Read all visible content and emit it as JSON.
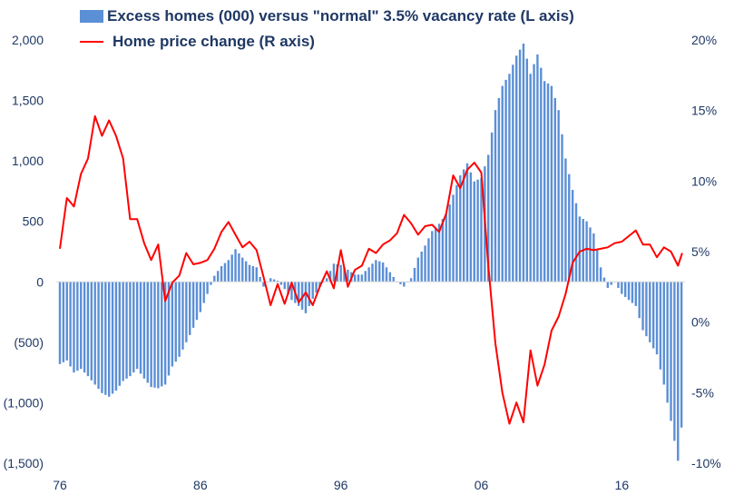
{
  "chart_data": {
    "type": "bar",
    "title": "",
    "legend": [
      {
        "label": "Excess homes (000) versus \"normal\" 3.5% vacancy rate (L axis)",
        "kind": "bar",
        "color": "#5b8fd6"
      },
      {
        "label": "Home price change (R axis)",
        "kind": "line",
        "color": "#ff0000"
      }
    ],
    "left_axis": {
      "ylim": [
        -1500,
        2000
      ],
      "ticks": [
        -1500,
        -1000,
        -500,
        0,
        500,
        1000,
        1500,
        2000
      ],
      "tick_labels": [
        "(1,500)",
        "(1,000)",
        "(500)",
        "0",
        "500",
        "1,000",
        "1,500",
        "2,000"
      ]
    },
    "right_axis": {
      "ylim": [
        -10,
        20
      ],
      "ticks": [
        -10,
        -5,
        0,
        5,
        10,
        15,
        20
      ],
      "tick_labels": [
        "-10%",
        "-5%",
        "0%",
        "5%",
        "10%",
        "15%",
        "20%"
      ]
    },
    "x_axis": {
      "start": 1976.0,
      "end": 2020.5,
      "tick_years": [
        1976,
        1986,
        1996,
        2006,
        2016
      ],
      "tick_labels": [
        "76",
        "86",
        "96",
        "06",
        "16"
      ]
    },
    "series": [
      {
        "name": "Excess homes (000)",
        "axis": "left",
        "type": "bar",
        "points": [
          [
            1976.0,
            -680
          ],
          [
            1976.5,
            -650
          ],
          [
            1977.0,
            -750
          ],
          [
            1977.5,
            -720
          ],
          [
            1978.0,
            -780
          ],
          [
            1978.5,
            -850
          ],
          [
            1979.0,
            -920
          ],
          [
            1979.5,
            -950
          ],
          [
            1980.0,
            -900
          ],
          [
            1980.5,
            -820
          ],
          [
            1981.0,
            -780
          ],
          [
            1981.5,
            -720
          ],
          [
            1982.0,
            -800
          ],
          [
            1982.5,
            -870
          ],
          [
            1983.0,
            -880
          ],
          [
            1983.5,
            -850
          ],
          [
            1984.0,
            -700
          ],
          [
            1984.5,
            -620
          ],
          [
            1985.0,
            -500
          ],
          [
            1985.5,
            -380
          ],
          [
            1986.0,
            -250
          ],
          [
            1986.5,
            -100
          ],
          [
            1987.0,
            50
          ],
          [
            1987.5,
            130
          ],
          [
            1988.0,
            180
          ],
          [
            1988.5,
            270
          ],
          [
            1989.0,
            200
          ],
          [
            1989.5,
            140
          ],
          [
            1990.0,
            120
          ],
          [
            1990.5,
            -40
          ],
          [
            1991.0,
            30
          ],
          [
            1991.5,
            10
          ],
          [
            1992.0,
            -60
          ],
          [
            1992.5,
            -150
          ],
          [
            1993.0,
            -200
          ],
          [
            1993.5,
            -260
          ],
          [
            1994.0,
            -140
          ],
          [
            1994.5,
            -40
          ],
          [
            1995.0,
            30
          ],
          [
            1995.5,
            150
          ],
          [
            1996.0,
            140
          ],
          [
            1996.5,
            100
          ],
          [
            1997.0,
            60
          ],
          [
            1997.5,
            60
          ],
          [
            1998.0,
            120
          ],
          [
            1998.5,
            180
          ],
          [
            1999.0,
            160
          ],
          [
            1999.5,
            80
          ],
          [
            2000.0,
            0
          ],
          [
            2000.5,
            -40
          ],
          [
            2001.0,
            30
          ],
          [
            2001.5,
            200
          ],
          [
            2002.0,
            300
          ],
          [
            2002.5,
            420
          ],
          [
            2003.0,
            480
          ],
          [
            2003.5,
            560
          ],
          [
            2004.0,
            720
          ],
          [
            2004.5,
            880
          ],
          [
            2005.0,
            980
          ],
          [
            2005.5,
            830
          ],
          [
            2006.0,
            860
          ],
          [
            2006.5,
            1050
          ],
          [
            2007.0,
            1420
          ],
          [
            2007.5,
            1620
          ],
          [
            2008.0,
            1720
          ],
          [
            2008.5,
            1870
          ],
          [
            2009.0,
            1970
          ],
          [
            2009.5,
            1720
          ],
          [
            2010.0,
            1880
          ],
          [
            2010.5,
            1660
          ],
          [
            2011.0,
            1620
          ],
          [
            2011.5,
            1420
          ],
          [
            2012.0,
            1020
          ],
          [
            2012.5,
            760
          ],
          [
            2013.0,
            540
          ],
          [
            2013.5,
            500
          ],
          [
            2014.0,
            400
          ],
          [
            2014.5,
            120
          ],
          [
            2015.0,
            -50
          ],
          [
            2015.5,
            0
          ],
          [
            2016.0,
            -100
          ],
          [
            2016.5,
            -150
          ],
          [
            2017.0,
            -200
          ],
          [
            2017.5,
            -400
          ],
          [
            2018.0,
            -500
          ],
          [
            2018.5,
            -600
          ],
          [
            2019.0,
            -850
          ],
          [
            2019.5,
            -1150
          ],
          [
            2020.0,
            -1480
          ],
          [
            2020.3,
            -1150
          ]
        ]
      },
      {
        "name": "Home price change (%)",
        "axis": "right",
        "type": "line",
        "points": [
          [
            1976.0,
            5.2
          ],
          [
            1976.5,
            8.8
          ],
          [
            1977.0,
            8.2
          ],
          [
            1977.5,
            10.5
          ],
          [
            1978.0,
            11.6
          ],
          [
            1978.5,
            14.6
          ],
          [
            1979.0,
            13.2
          ],
          [
            1979.5,
            14.3
          ],
          [
            1980.0,
            13.2
          ],
          [
            1980.5,
            11.6
          ],
          [
            1981.0,
            7.3
          ],
          [
            1981.5,
            7.3
          ],
          [
            1982.0,
            5.6
          ],
          [
            1982.5,
            4.4
          ],
          [
            1983.0,
            5.5
          ],
          [
            1983.5,
            1.5
          ],
          [
            1984.0,
            2.8
          ],
          [
            1984.5,
            3.3
          ],
          [
            1985.0,
            4.9
          ],
          [
            1985.5,
            4.1
          ],
          [
            1986.0,
            4.2
          ],
          [
            1986.5,
            4.4
          ],
          [
            1987.0,
            5.2
          ],
          [
            1987.5,
            6.4
          ],
          [
            1988.0,
            7.1
          ],
          [
            1988.5,
            6.2
          ],
          [
            1989.0,
            5.3
          ],
          [
            1989.5,
            5.7
          ],
          [
            1990.0,
            5.1
          ],
          [
            1990.5,
            3.2
          ],
          [
            1991.0,
            1.2
          ],
          [
            1991.5,
            2.7
          ],
          [
            1992.0,
            1.3
          ],
          [
            1992.5,
            2.8
          ],
          [
            1993.0,
            1.4
          ],
          [
            1993.5,
            2.1
          ],
          [
            1994.0,
            1.2
          ],
          [
            1994.5,
            2.5
          ],
          [
            1995.0,
            3.6
          ],
          [
            1995.5,
            2.4
          ],
          [
            1996.0,
            5.1
          ],
          [
            1996.5,
            2.5
          ],
          [
            1997.0,
            3.7
          ],
          [
            1997.5,
            4.0
          ],
          [
            1998.0,
            5.2
          ],
          [
            1998.5,
            4.9
          ],
          [
            1999.0,
            5.5
          ],
          [
            1999.5,
            5.8
          ],
          [
            2000.0,
            6.3
          ],
          [
            2000.5,
            7.6
          ],
          [
            2001.0,
            7.0
          ],
          [
            2001.5,
            6.2
          ],
          [
            2002.0,
            6.8
          ],
          [
            2002.5,
            6.9
          ],
          [
            2003.0,
            6.4
          ],
          [
            2003.5,
            7.7
          ],
          [
            2004.0,
            10.4
          ],
          [
            2004.5,
            9.5
          ],
          [
            2005.0,
            10.8
          ],
          [
            2005.5,
            11.3
          ],
          [
            2006.0,
            10.6
          ],
          [
            2006.5,
            4.0
          ],
          [
            2007.0,
            -1.5
          ],
          [
            2007.5,
            -5.0
          ],
          [
            2008.0,
            -7.2
          ],
          [
            2008.5,
            -5.7
          ],
          [
            2009.0,
            -7.1
          ],
          [
            2009.5,
            -2.0
          ],
          [
            2010.0,
            -4.5
          ],
          [
            2010.5,
            -3.0
          ],
          [
            2011.0,
            -0.6
          ],
          [
            2011.5,
            0.4
          ],
          [
            2012.0,
            2.0
          ],
          [
            2012.5,
            4.2
          ],
          [
            2013.0,
            5.0
          ],
          [
            2013.5,
            5.2
          ],
          [
            2014.0,
            5.1
          ],
          [
            2014.5,
            5.2
          ],
          [
            2015.0,
            5.3
          ],
          [
            2015.5,
            5.6
          ],
          [
            2016.0,
            5.7
          ],
          [
            2016.5,
            6.1
          ],
          [
            2017.0,
            6.5
          ],
          [
            2017.5,
            5.5
          ],
          [
            2018.0,
            5.5
          ],
          [
            2018.5,
            4.6
          ],
          [
            2019.0,
            5.3
          ],
          [
            2019.5,
            5.0
          ],
          [
            2020.0,
            4.0
          ],
          [
            2020.3,
            4.9
          ]
        ]
      }
    ]
  }
}
